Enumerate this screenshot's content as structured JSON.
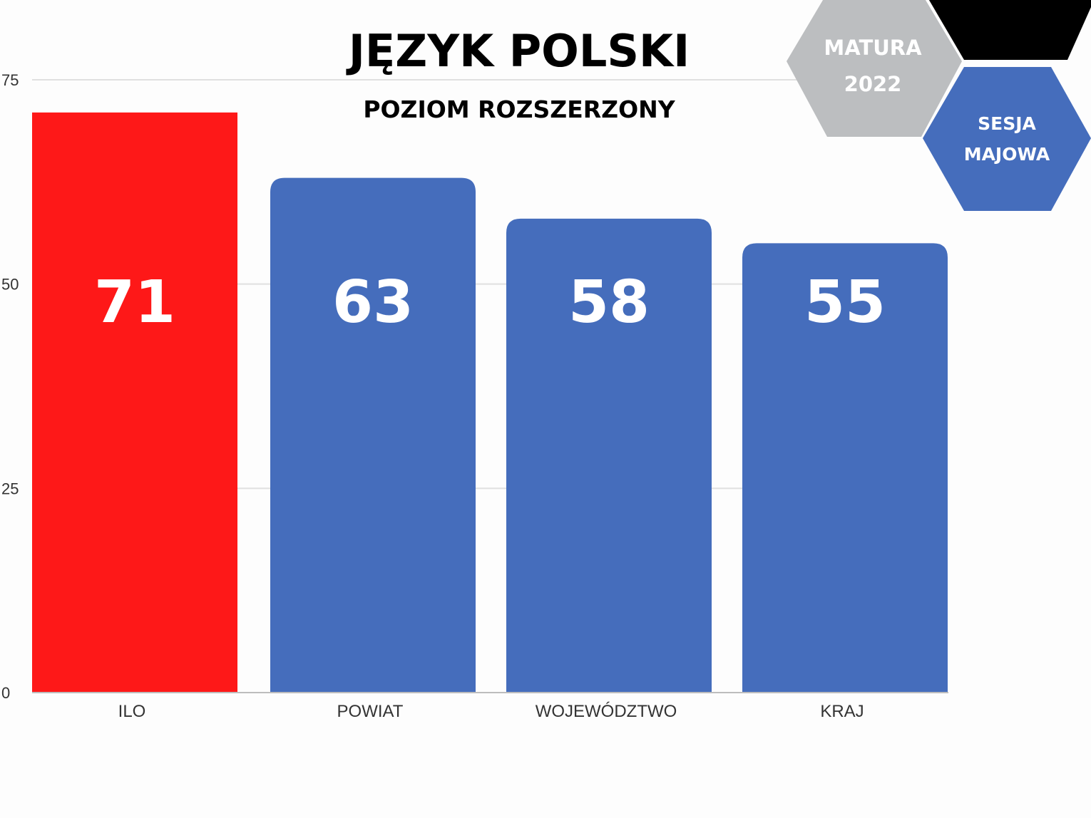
{
  "title": "JĘZYK POLSKI",
  "subtitle": "POZIOM ROZSZERZONY",
  "badges": {
    "matura_line1": "MATURA",
    "matura_line2": "2022",
    "sesja_line1": "SESJA",
    "sesja_line2": "MAJOWA"
  },
  "colors": {
    "highlight": "#fe1818",
    "bar": "#456dbc",
    "badge_gray": "#bcbec0",
    "badge_black": "#000000",
    "badge_blue": "#456dbc",
    "grid": "#e0e0e0"
  },
  "chart_data": {
    "type": "bar",
    "categories": [
      "ILO",
      "POWIAT",
      "WOJEWÓDZTWO",
      "KRAJ"
    ],
    "values": [
      71,
      63,
      58,
      55
    ],
    "data_labels": [
      "71",
      "63",
      "58",
      "55"
    ],
    "highlight_index": 0,
    "ylim": [
      0,
      75
    ],
    "yticks": [
      0,
      25,
      50,
      75
    ],
    "ytick_labels": [
      "0",
      "25",
      "50",
      "75"
    ],
    "grid": true,
    "legend": false,
    "xlabel": "",
    "ylabel": ""
  }
}
